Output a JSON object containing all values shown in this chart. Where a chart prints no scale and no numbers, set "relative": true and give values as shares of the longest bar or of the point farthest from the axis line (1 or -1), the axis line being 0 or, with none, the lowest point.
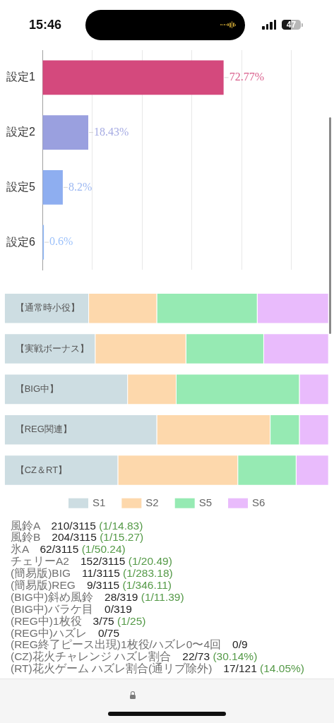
{
  "chart_data": [
    {
      "type": "other",
      "annotations": [
        "15:46",
        "47"
      ]
    },
    {
      "type": "bar",
      "orientation": "horizontal",
      "categories": [
        "設定1",
        "設定2",
        "設定5",
        "設定6"
      ],
      "values": [
        72.77,
        18.43,
        8.2,
        0.6
      ],
      "colors": [
        "#d4497d",
        "#9aa0df",
        "#8eaef0",
        "#8fb9fa"
      ],
      "value_labels": [
        "72.77%",
        "18.43%",
        "8.2%",
        "0.6%"
      ],
      "xlim": [
        0,
        100
      ],
      "xticks": [
        {
          "value": 0,
          "label": null
        },
        {
          "value": 20,
          "label": null
        },
        {
          "value": 40,
          "label": null
        },
        {
          "value": 60,
          "label": null
        },
        {
          "value": 80,
          "label": null
        },
        {
          "value": 100,
          "label": null
        }
      ],
      "grid": "x",
      "tick_labels": "y"
    },
    {
      "type": "bar",
      "orientation": "horizontal",
      "stacked": true,
      "relative": true,
      "categories": [
        "【通常時小役】",
        "【実戦ボーナス】",
        "【BIG中】",
        "【REG関連】",
        "【CZ＆RT】"
      ],
      "series": [
        {
          "name": "S1",
          "color": "#cddde2",
          "values": [
            0.26,
            0.28,
            0.38,
            0.47,
            0.35
          ]
        },
        {
          "name": "S2",
          "color": "#fdd8ac",
          "values": [
            0.21,
            0.28,
            0.15,
            0.35,
            0.37
          ]
        },
        {
          "name": "S5",
          "color": "#96eab3",
          "values": [
            0.31,
            0.24,
            0.38,
            0.09,
            0.18
          ]
        },
        {
          "name": "S6",
          "color": "#e9bbfc",
          "values": [
            0.22,
            0.2,
            0.09,
            0.09,
            0.1
          ]
        }
      ],
      "legend": "bottom"
    },
    {
      "type": "other",
      "annotations": [
        "風鈴A　210/3115 (1/14.83)",
        "風鈴B　204/3115 (1/15.27)",
        "氷A　62/3115 (1/50.24)",
        "チェリーA2　152/3115 (1/20.49)",
        "(簡易版)BIG　11/3115 (1/283.18)",
        "(簡易版)REG　9/3115 (1/346.11)",
        "(BIG中)斜め風鈴　28/319 (1/11.39)",
        "(BIG中)バラケ目　0/319",
        "(REG中)1枚役　3/75 (1/25)",
        "(REG中)ハズレ　0/75",
        "(REG終了ピース出現)1枚役/ハズレ0〜4回　0/9",
        "(CZ)花火チャレンジ ハズレ割合　22/73 (30.14%)",
        "(RT)花火ゲーム ハズレ割合(通リブ除外)　17/121 (14.05%)"
      ]
    }
  ]
}
